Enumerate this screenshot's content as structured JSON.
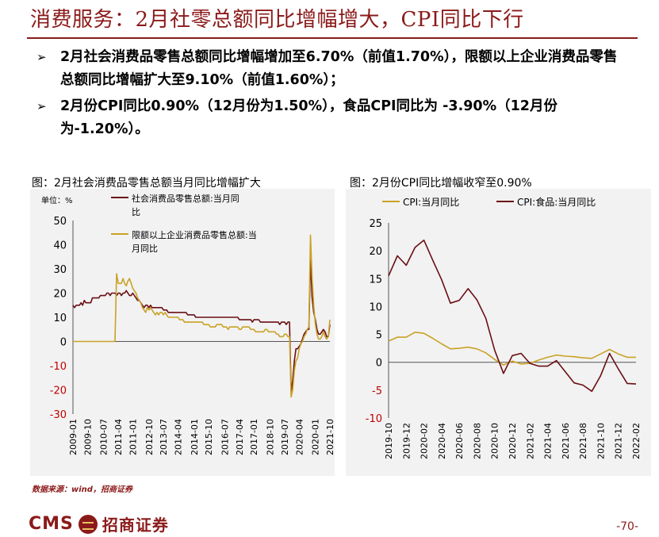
{
  "title": "消费服务：2月社零总额同比增幅增大，CPI同比下行",
  "bullets": [
    "2月社会消费品零售总额同比增幅增加至6.70%（前值1.70%），限额以上企业消费品零售总额同比增幅扩大至9.10%（前值1.60%）；",
    "2月份CPI同比0.90%（12月份为1.50%），食品CPI同比为 -3.90%（12月份为-1.20%）。"
  ],
  "bullet_marker": "➢",
  "colors": {
    "accent": "#8b1a1a",
    "dark_red": "#6b0f14",
    "gold": "#c9a227"
  },
  "chart_data": [
    {
      "type": "line",
      "title": "图：2月社会消费品零售总额当月同比增幅扩大",
      "unit_label": "单位：%",
      "ylim": [
        -30,
        50
      ],
      "yticks": [
        -30,
        -20,
        -10,
        0,
        10,
        20,
        30,
        40,
        50
      ],
      "x_tick_labels": [
        "2009-01",
        "2009-10",
        "2010-07",
        "2011-04",
        "2011-01",
        "2012-10",
        "2013-07",
        "2014-04",
        "2014-01",
        "2015-10",
        "2016-07",
        "2017-04",
        "2017-01",
        "2018-10",
        "2019-07",
        "2020-04",
        "2020-01",
        "2021-10"
      ],
      "series": [
        {
          "name": "社会消费品零售总额:当月同比",
          "color": "#6b0f14",
          "values": [
            15,
            14,
            15,
            15,
            15,
            16,
            15,
            17,
            16,
            16,
            16,
            16,
            18,
            18,
            18,
            18,
            18,
            19,
            19,
            19,
            19,
            20,
            20,
            19,
            20,
            20,
            20,
            19,
            20,
            20,
            19,
            20,
            20,
            21,
            20,
            19,
            19,
            20,
            19,
            18,
            17,
            17,
            16,
            15,
            14,
            15,
            15,
            14,
            15,
            14,
            14,
            14,
            14,
            14,
            14,
            14,
            13,
            13,
            13,
            12,
            12,
            12,
            12,
            12,
            12,
            12,
            12,
            12,
            12,
            12,
            12,
            11,
            11,
            11,
            11,
            11,
            10,
            10,
            10,
            10,
            10,
            10,
            10,
            10,
            10,
            10,
            10,
            10,
            10,
            10,
            10,
            10,
            10,
            10,
            10,
            10,
            10,
            10,
            10,
            10,
            10,
            10,
            10,
            9,
            9,
            9,
            9,
            9,
            9,
            9,
            9,
            8,
            9,
            9,
            9,
            9,
            8,
            8,
            8,
            8,
            8,
            8,
            8,
            8,
            8,
            8,
            8,
            8,
            7,
            8,
            8,
            8,
            7,
            8,
            8,
            -21,
            -16,
            -8,
            -3,
            -3,
            -2,
            -1,
            1,
            3,
            4,
            5,
            5,
            34,
            18,
            12,
            9,
            5,
            3,
            3,
            4,
            5,
            4,
            2,
            2,
            7
          ]
        },
        {
          "name": "限额以上企业消费品零售总额:当月同比",
          "color": "#c9a227",
          "values": [
            0,
            0,
            0,
            0,
            0,
            0,
            0,
            0,
            0,
            0,
            0,
            0,
            0,
            0,
            0,
            0,
            0,
            0,
            0,
            0,
            0,
            0,
            0,
            0,
            0,
            0,
            0,
            28,
            24,
            24,
            24,
            26,
            24,
            23,
            25,
            26,
            24,
            22,
            21,
            20,
            18,
            17,
            16,
            14,
            13,
            12,
            14,
            13,
            14,
            13,
            12,
            11,
            12,
            11,
            12,
            12,
            11,
            12,
            11,
            10,
            10,
            10,
            10,
            10,
            10,
            10,
            9,
            9,
            9,
            8,
            8,
            8,
            8,
            8,
            8,
            8,
            8,
            8,
            8,
            8,
            8,
            7,
            7,
            7,
            7,
            6,
            6,
            6,
            6,
            7,
            7,
            7,
            7,
            6,
            6,
            6,
            5,
            6,
            6,
            6,
            6,
            6,
            6,
            5,
            5,
            6,
            6,
            6,
            6,
            6,
            5,
            5,
            5,
            4,
            4,
            4,
            4,
            4,
            4,
            5,
            5,
            4,
            4,
            4,
            4,
            4,
            3,
            3,
            2,
            2,
            2,
            3,
            3,
            2,
            2,
            -23,
            -20,
            -12,
            -8,
            -7,
            -3,
            -1,
            0,
            2,
            3,
            5,
            6,
            44,
            26,
            15,
            7,
            3,
            1,
            1,
            2,
            4,
            2,
            1,
            2,
            9
          ]
        }
      ]
    },
    {
      "type": "line",
      "title": "图：2月份CPI同比增幅收窄至0.90%",
      "ylim": [
        -10,
        25
      ],
      "yticks": [
        -10,
        -5,
        0,
        5,
        10,
        15,
        20,
        25
      ],
      "x": [
        "2019-10",
        "2019-11",
        "2019-12",
        "2020-01",
        "2020-02",
        "2020-03",
        "2020-04",
        "2020-05",
        "2020-06",
        "2020-07",
        "2020-08",
        "2020-09",
        "2020-10",
        "2020-11",
        "2020-12",
        "2021-01",
        "2021-02",
        "2021-03",
        "2021-04",
        "2021-05",
        "2021-06",
        "2021-07",
        "2021-08",
        "2021-09",
        "2021-10",
        "2021-11",
        "2021-12",
        "2022-01",
        "2022-02"
      ],
      "x_tick_labels": [
        "2019-10",
        "2019-12",
        "2020-02",
        "2020-04",
        "2020-06",
        "2020-08",
        "2020-10",
        "2020-12",
        "2021-02",
        "2021-04",
        "2021-06",
        "2021-08",
        "2021-10",
        "2021-12",
        "2022-02"
      ],
      "series": [
        {
          "name": "CPI:当月同比",
          "color": "#c9a227",
          "values": [
            3.8,
            4.5,
            4.5,
            5.4,
            5.2,
            4.3,
            3.3,
            2.4,
            2.5,
            2.7,
            2.4,
            1.7,
            0.5,
            -0.5,
            0.2,
            -0.3,
            -0.2,
            0.4,
            0.9,
            1.3,
            1.1,
            1.0,
            0.8,
            0.7,
            1.5,
            2.3,
            1.5,
            0.9,
            0.9
          ]
        },
        {
          "name": "CPI:食品:当月同比",
          "color": "#6b0f14",
          "values": [
            15.5,
            19.1,
            17.4,
            20.6,
            21.9,
            18.3,
            14.8,
            10.6,
            11.1,
            13.2,
            11.2,
            7.9,
            2.2,
            -2.0,
            1.2,
            1.6,
            -0.2,
            -0.7,
            -0.7,
            0.3,
            -1.7,
            -3.7,
            -4.1,
            -5.2,
            -2.4,
            1.6,
            -1.2,
            -3.8,
            -3.9
          ]
        }
      ]
    }
  ],
  "source": "数据来源：wind，招商证券",
  "logo": {
    "latin": "CMS",
    "chinese": "招商证券"
  },
  "page_number": "-70-"
}
